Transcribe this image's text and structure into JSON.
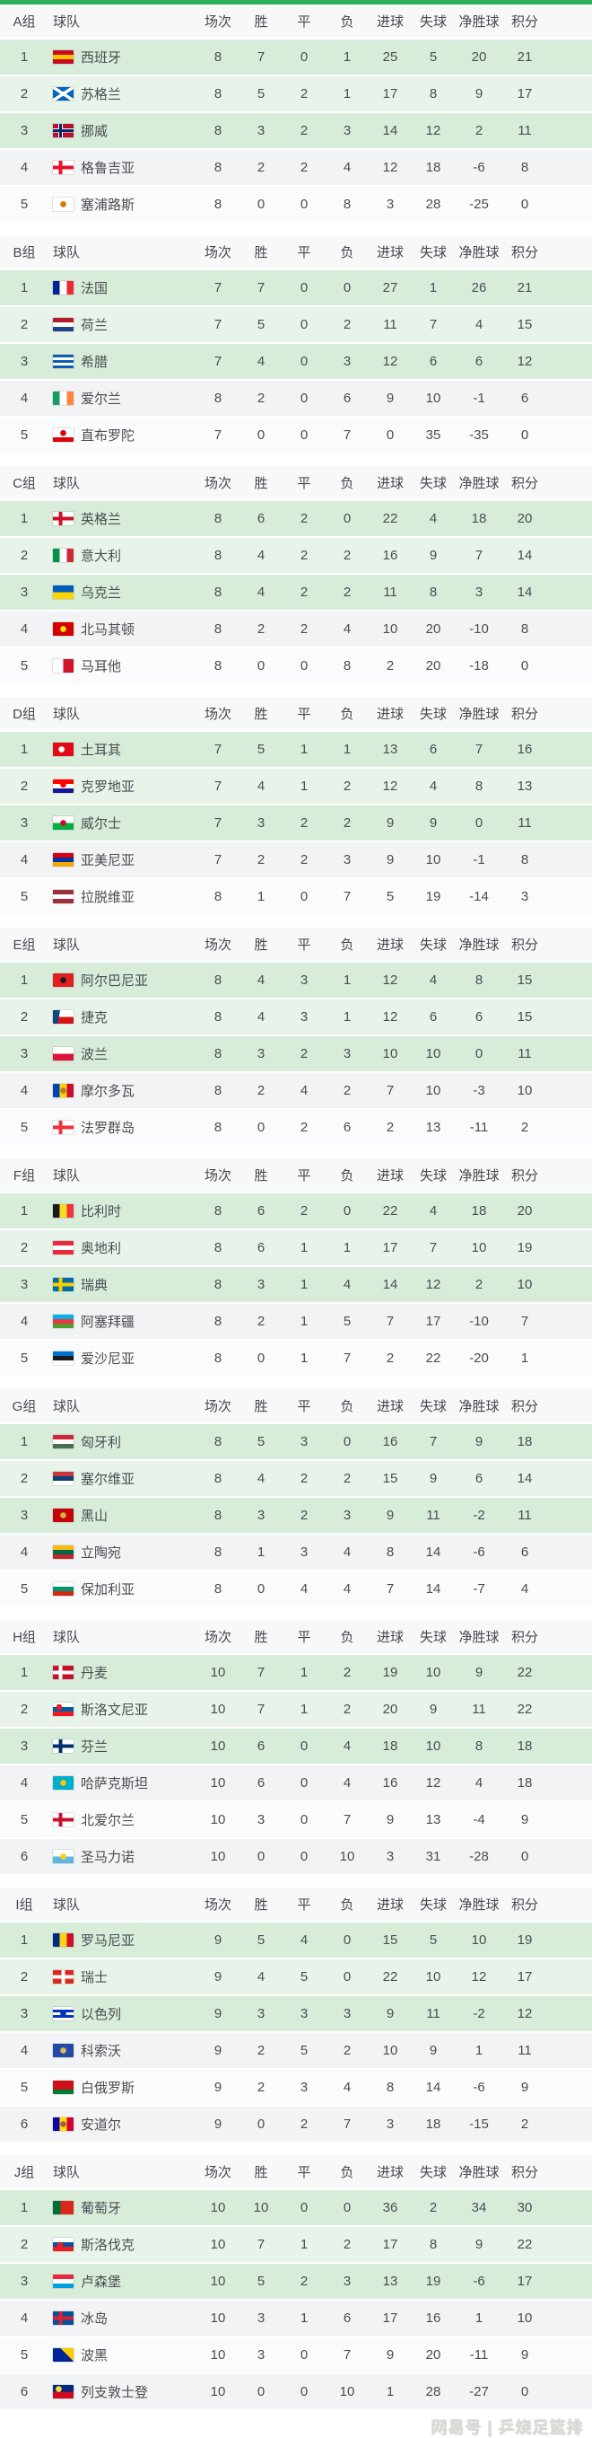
{
  "theme": {
    "accent_bar": "#2bb157",
    "row_green_dark": "#d7edda",
    "row_green_light": "#e8f4e9",
    "row_gray": "#f2f3f5",
    "row_white": "#fafbfc",
    "header_bg": "#f7f8f8",
    "text": "#4a4d52"
  },
  "columns": [
    "球队",
    "场次",
    "胜",
    "平",
    "负",
    "进球",
    "失球",
    "净胜球",
    "积分"
  ],
  "footer": {
    "watermark": "网易号 | 乒烧足篮排"
  },
  "groups": [
    {
      "label": "A组",
      "teams": [
        {
          "rank": 1,
          "name": "西班牙",
          "flag": "flag-spain",
          "p": 8,
          "w": 7,
          "d": 0,
          "l": 1,
          "gf": 25,
          "ga": 5,
          "gd": 20,
          "pts": 21
        },
        {
          "rank": 2,
          "name": "苏格兰",
          "flag": "flag-scotland",
          "p": 8,
          "w": 5,
          "d": 2,
          "l": 1,
          "gf": 17,
          "ga": 8,
          "gd": 9,
          "pts": 17
        },
        {
          "rank": 3,
          "name": "挪威",
          "flag": "flag-norway",
          "p": 8,
          "w": 3,
          "d": 2,
          "l": 3,
          "gf": 14,
          "ga": 12,
          "gd": 2,
          "pts": 11
        },
        {
          "rank": 4,
          "name": "格鲁吉亚",
          "flag": "flag-georgia",
          "p": 8,
          "w": 2,
          "d": 2,
          "l": 4,
          "gf": 12,
          "ga": 18,
          "gd": -6,
          "pts": 8
        },
        {
          "rank": 5,
          "name": "塞浦路斯",
          "flag": "flag-cyprus",
          "p": 8,
          "w": 0,
          "d": 0,
          "l": 8,
          "gf": 3,
          "ga": 28,
          "gd": -25,
          "pts": 0
        }
      ]
    },
    {
      "label": "B组",
      "teams": [
        {
          "rank": 1,
          "name": "法国",
          "flag": "flag-france",
          "p": 7,
          "w": 7,
          "d": 0,
          "l": 0,
          "gf": 27,
          "ga": 1,
          "gd": 26,
          "pts": 21
        },
        {
          "rank": 2,
          "name": "荷兰",
          "flag": "flag-netherlands",
          "p": 7,
          "w": 5,
          "d": 0,
          "l": 2,
          "gf": 11,
          "ga": 7,
          "gd": 4,
          "pts": 15
        },
        {
          "rank": 3,
          "name": "希腊",
          "flag": "flag-greece",
          "p": 7,
          "w": 4,
          "d": 0,
          "l": 3,
          "gf": 12,
          "ga": 6,
          "gd": 6,
          "pts": 12
        },
        {
          "rank": 4,
          "name": "爱尔兰",
          "flag": "flag-ireland",
          "p": 8,
          "w": 2,
          "d": 0,
          "l": 6,
          "gf": 9,
          "ga": 10,
          "gd": -1,
          "pts": 6
        },
        {
          "rank": 5,
          "name": "直布罗陀",
          "flag": "flag-gibraltar",
          "p": 7,
          "w": 0,
          "d": 0,
          "l": 7,
          "gf": 0,
          "ga": 35,
          "gd": -35,
          "pts": 0
        }
      ]
    },
    {
      "label": "C组",
      "teams": [
        {
          "rank": 1,
          "name": "英格兰",
          "flag": "flag-england",
          "p": 8,
          "w": 6,
          "d": 2,
          "l": 0,
          "gf": 22,
          "ga": 4,
          "gd": 18,
          "pts": 20
        },
        {
          "rank": 2,
          "name": "意大利",
          "flag": "flag-italy",
          "p": 8,
          "w": 4,
          "d": 2,
          "l": 2,
          "gf": 16,
          "ga": 9,
          "gd": 7,
          "pts": 14
        },
        {
          "rank": 3,
          "name": "乌克兰",
          "flag": "flag-ukraine",
          "p": 8,
          "w": 4,
          "d": 2,
          "l": 2,
          "gf": 11,
          "ga": 8,
          "gd": 3,
          "pts": 14
        },
        {
          "rank": 4,
          "name": "北马其顿",
          "flag": "flag-macedonia",
          "p": 8,
          "w": 2,
          "d": 2,
          "l": 4,
          "gf": 10,
          "ga": 20,
          "gd": -10,
          "pts": 8
        },
        {
          "rank": 5,
          "name": "马耳他",
          "flag": "flag-malta",
          "p": 8,
          "w": 0,
          "d": 0,
          "l": 8,
          "gf": 2,
          "ga": 20,
          "gd": -18,
          "pts": 0
        }
      ]
    },
    {
      "label": "D组",
      "teams": [
        {
          "rank": 1,
          "name": "土耳其",
          "flag": "flag-turkey",
          "p": 7,
          "w": 5,
          "d": 1,
          "l": 1,
          "gf": 13,
          "ga": 6,
          "gd": 7,
          "pts": 16
        },
        {
          "rank": 2,
          "name": "克罗地亚",
          "flag": "flag-croatia",
          "p": 7,
          "w": 4,
          "d": 1,
          "l": 2,
          "gf": 12,
          "ga": 4,
          "gd": 8,
          "pts": 13
        },
        {
          "rank": 3,
          "name": "威尔士",
          "flag": "flag-wales",
          "p": 7,
          "w": 3,
          "d": 2,
          "l": 2,
          "gf": 9,
          "ga": 9,
          "gd": 0,
          "pts": 11
        },
        {
          "rank": 4,
          "name": "亚美尼亚",
          "flag": "flag-armenia",
          "p": 7,
          "w": 2,
          "d": 2,
          "l": 3,
          "gf": 9,
          "ga": 10,
          "gd": -1,
          "pts": 8
        },
        {
          "rank": 5,
          "name": "拉脱维亚",
          "flag": "flag-latvia",
          "p": 8,
          "w": 1,
          "d": 0,
          "l": 7,
          "gf": 5,
          "ga": 19,
          "gd": -14,
          "pts": 3
        }
      ]
    },
    {
      "label": "E组",
      "teams": [
        {
          "rank": 1,
          "name": "阿尔巴尼亚",
          "flag": "flag-albania",
          "p": 8,
          "w": 4,
          "d": 3,
          "l": 1,
          "gf": 12,
          "ga": 4,
          "gd": 8,
          "pts": 15
        },
        {
          "rank": 2,
          "name": "捷克",
          "flag": "flag-czech",
          "p": 8,
          "w": 4,
          "d": 3,
          "l": 1,
          "gf": 12,
          "ga": 6,
          "gd": 6,
          "pts": 15
        },
        {
          "rank": 3,
          "name": "波兰",
          "flag": "flag-poland",
          "p": 8,
          "w": 3,
          "d": 2,
          "l": 3,
          "gf": 10,
          "ga": 10,
          "gd": 0,
          "pts": 11
        },
        {
          "rank": 4,
          "name": "摩尔多瓦",
          "flag": "flag-moldova",
          "p": 8,
          "w": 2,
          "d": 4,
          "l": 2,
          "gf": 7,
          "ga": 10,
          "gd": -3,
          "pts": 10
        },
        {
          "rank": 5,
          "name": "法罗群岛",
          "flag": "flag-faroe",
          "p": 8,
          "w": 0,
          "d": 2,
          "l": 6,
          "gf": 2,
          "ga": 13,
          "gd": -11,
          "pts": 2
        }
      ]
    },
    {
      "label": "F组",
      "teams": [
        {
          "rank": 1,
          "name": "比利时",
          "flag": "flag-belgium",
          "p": 8,
          "w": 6,
          "d": 2,
          "l": 0,
          "gf": 22,
          "ga": 4,
          "gd": 18,
          "pts": 20
        },
        {
          "rank": 2,
          "name": "奥地利",
          "flag": "flag-austria",
          "p": 8,
          "w": 6,
          "d": 1,
          "l": 1,
          "gf": 17,
          "ga": 7,
          "gd": 10,
          "pts": 19
        },
        {
          "rank": 3,
          "name": "瑞典",
          "flag": "flag-sweden",
          "p": 8,
          "w": 3,
          "d": 1,
          "l": 4,
          "gf": 14,
          "ga": 12,
          "gd": 2,
          "pts": 10
        },
        {
          "rank": 4,
          "name": "阿塞拜疆",
          "flag": "flag-azerbaijan",
          "p": 8,
          "w": 2,
          "d": 1,
          "l": 5,
          "gf": 7,
          "ga": 17,
          "gd": -10,
          "pts": 7
        },
        {
          "rank": 5,
          "name": "爱沙尼亚",
          "flag": "flag-estonia",
          "p": 8,
          "w": 0,
          "d": 1,
          "l": 7,
          "gf": 2,
          "ga": 22,
          "gd": -20,
          "pts": 1
        }
      ]
    },
    {
      "label": "G组",
      "teams": [
        {
          "rank": 1,
          "name": "匈牙利",
          "flag": "flag-hungary",
          "p": 8,
          "w": 5,
          "d": 3,
          "l": 0,
          "gf": 16,
          "ga": 7,
          "gd": 9,
          "pts": 18
        },
        {
          "rank": 2,
          "name": "塞尔维亚",
          "flag": "flag-serbia",
          "p": 8,
          "w": 4,
          "d": 2,
          "l": 2,
          "gf": 15,
          "ga": 9,
          "gd": 6,
          "pts": 14
        },
        {
          "rank": 3,
          "name": "黑山",
          "flag": "flag-montenegro",
          "p": 8,
          "w": 3,
          "d": 2,
          "l": 3,
          "gf": 9,
          "ga": 11,
          "gd": -2,
          "pts": 11
        },
        {
          "rank": 4,
          "name": "立陶宛",
          "flag": "flag-lithuania",
          "p": 8,
          "w": 1,
          "d": 3,
          "l": 4,
          "gf": 8,
          "ga": 14,
          "gd": -6,
          "pts": 6
        },
        {
          "rank": 5,
          "name": "保加利亚",
          "flag": "flag-bulgaria",
          "p": 8,
          "w": 0,
          "d": 4,
          "l": 4,
          "gf": 7,
          "ga": 14,
          "gd": -7,
          "pts": 4
        }
      ]
    },
    {
      "label": "H组",
      "teams": [
        {
          "rank": 1,
          "name": "丹麦",
          "flag": "flag-denmark",
          "p": 10,
          "w": 7,
          "d": 1,
          "l": 2,
          "gf": 19,
          "ga": 10,
          "gd": 9,
          "pts": 22
        },
        {
          "rank": 2,
          "name": "斯洛文尼亚",
          "flag": "flag-slovenia",
          "p": 10,
          "w": 7,
          "d": 1,
          "l": 2,
          "gf": 20,
          "ga": 9,
          "gd": 11,
          "pts": 22
        },
        {
          "rank": 3,
          "name": "芬兰",
          "flag": "flag-finland",
          "p": 10,
          "w": 6,
          "d": 0,
          "l": 4,
          "gf": 18,
          "ga": 10,
          "gd": 8,
          "pts": 18
        },
        {
          "rank": 4,
          "name": "哈萨克斯坦",
          "flag": "flag-kazakhstan",
          "p": 10,
          "w": 6,
          "d": 0,
          "l": 4,
          "gf": 16,
          "ga": 12,
          "gd": 4,
          "pts": 18
        },
        {
          "rank": 5,
          "name": "北爱尔兰",
          "flag": "flag-nireland",
          "p": 10,
          "w": 3,
          "d": 0,
          "l": 7,
          "gf": 9,
          "ga": 13,
          "gd": -4,
          "pts": 9
        },
        {
          "rank": 6,
          "name": "圣马力诺",
          "flag": "flag-sanmarino",
          "p": 10,
          "w": 0,
          "d": 0,
          "l": 10,
          "gf": 3,
          "ga": 31,
          "gd": -28,
          "pts": 0
        }
      ]
    },
    {
      "label": "I组",
      "teams": [
        {
          "rank": 1,
          "name": "罗马尼亚",
          "flag": "flag-romania",
          "p": 9,
          "w": 5,
          "d": 4,
          "l": 0,
          "gf": 15,
          "ga": 5,
          "gd": 10,
          "pts": 19
        },
        {
          "rank": 2,
          "name": "瑞士",
          "flag": "flag-switzerland",
          "p": 9,
          "w": 4,
          "d": 5,
          "l": 0,
          "gf": 22,
          "ga": 10,
          "gd": 12,
          "pts": 17
        },
        {
          "rank": 3,
          "name": "以色列",
          "flag": "flag-israel",
          "p": 9,
          "w": 3,
          "d": 3,
          "l": 3,
          "gf": 9,
          "ga": 11,
          "gd": -2,
          "pts": 12
        },
        {
          "rank": 4,
          "name": "科索沃",
          "flag": "flag-kosovo",
          "p": 9,
          "w": 2,
          "d": 5,
          "l": 2,
          "gf": 10,
          "ga": 9,
          "gd": 1,
          "pts": 11
        },
        {
          "rank": 5,
          "name": "白俄罗斯",
          "flag": "flag-belarus",
          "p": 9,
          "w": 2,
          "d": 3,
          "l": 4,
          "gf": 8,
          "ga": 14,
          "gd": -6,
          "pts": 9
        },
        {
          "rank": 6,
          "name": "安道尔",
          "flag": "flag-andorra",
          "p": 9,
          "w": 0,
          "d": 2,
          "l": 7,
          "gf": 3,
          "ga": 18,
          "gd": -15,
          "pts": 2
        }
      ]
    },
    {
      "label": "J组",
      "teams": [
        {
          "rank": 1,
          "name": "葡萄牙",
          "flag": "flag-portugal",
          "p": 10,
          "w": 10,
          "d": 0,
          "l": 0,
          "gf": 36,
          "ga": 2,
          "gd": 34,
          "pts": 30
        },
        {
          "rank": 2,
          "name": "斯洛伐克",
          "flag": "flag-slovakia",
          "p": 10,
          "w": 7,
          "d": 1,
          "l": 2,
          "gf": 17,
          "ga": 8,
          "gd": 9,
          "pts": 22
        },
        {
          "rank": 3,
          "name": "卢森堡",
          "flag": "flag-luxembourg",
          "p": 10,
          "w": 5,
          "d": 2,
          "l": 3,
          "gf": 13,
          "ga": 19,
          "gd": -6,
          "pts": 17
        },
        {
          "rank": 4,
          "name": "冰岛",
          "flag": "flag-iceland",
          "p": 10,
          "w": 3,
          "d": 1,
          "l": 6,
          "gf": 17,
          "ga": 16,
          "gd": 1,
          "pts": 10
        },
        {
          "rank": 5,
          "name": "波黑",
          "flag": "flag-bosnia",
          "p": 10,
          "w": 3,
          "d": 0,
          "l": 7,
          "gf": 9,
          "ga": 20,
          "gd": -11,
          "pts": 9
        },
        {
          "rank": 6,
          "name": "列支敦士登",
          "flag": "flag-liechtenstein",
          "p": 10,
          "w": 0,
          "d": 0,
          "l": 10,
          "gf": 1,
          "ga": 28,
          "gd": -27,
          "pts": 0
        }
      ]
    }
  ]
}
